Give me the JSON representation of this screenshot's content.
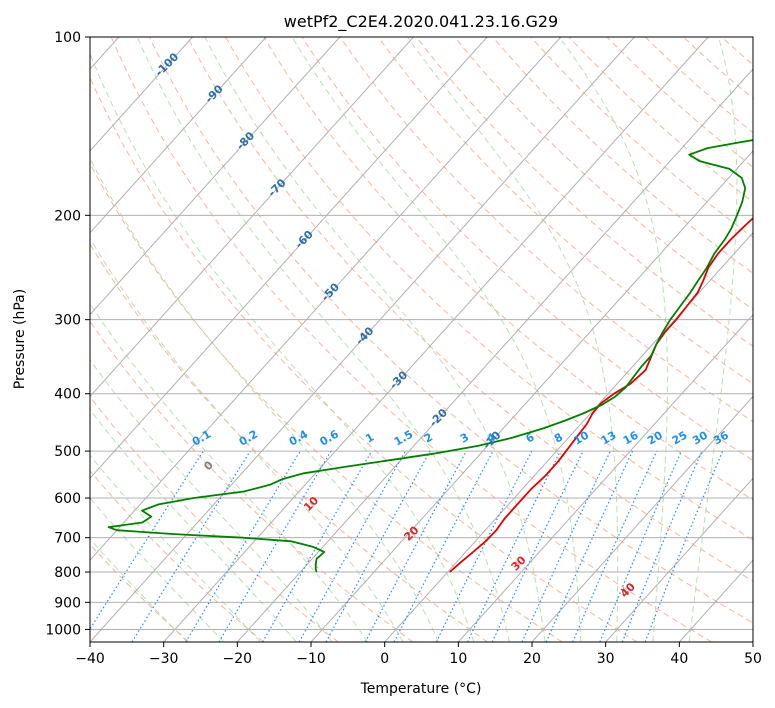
{
  "chart_data": {
    "type": "skew-t",
    "title": "wetPf2_C2E4.2020.041.23.16.G29",
    "xlabel": "Temperature (°C)",
    "ylabel": "Pressure (hPa)",
    "xlim": [
      -40,
      50
    ],
    "ylim": [
      1050,
      100
    ],
    "xticks": [
      -40,
      -30,
      -20,
      -10,
      0,
      10,
      20,
      30,
      40,
      50
    ],
    "yticks": [
      100,
      200,
      300,
      400,
      500,
      600,
      700,
      800,
      900,
      1000
    ],
    "colors": {
      "temperature": "#e00000",
      "dewpoint": "#008000",
      "isotherm": "#b0b0b0",
      "dry_adiabat": "#f4a582",
      "moist_adiabat": "#a6d8a0",
      "mixing_ratio": "#1f8fef",
      "isotherm_label": "#2a6fa8",
      "dry_label": "#d62728",
      "zero_label": "#808080"
    },
    "series": [
      {
        "name": "Temperature",
        "points": [
          [
            100,
            15.4
          ],
          [
            105,
            14.2
          ],
          [
            110,
            12.8
          ],
          [
            115,
            11.8
          ],
          [
            120,
            11.3
          ],
          [
            125,
            11.0
          ],
          [
            128,
            10.7
          ],
          [
            132,
            9.8
          ],
          [
            137,
            8.0
          ],
          [
            142,
            6.3
          ],
          [
            147,
            5.2
          ],
          [
            152,
            4.7
          ],
          [
            158,
            4.3
          ],
          [
            163,
            3.6
          ],
          [
            170,
            2.2
          ],
          [
            177,
            0.8
          ],
          [
            185,
            -0.4
          ],
          [
            192,
            -1.2
          ],
          [
            200,
            -1.7
          ],
          [
            210,
            -2.0
          ],
          [
            220,
            -2.2
          ],
          [
            232,
            -2.2
          ],
          [
            245,
            -1.8
          ],
          [
            258,
            -0.9
          ],
          [
            270,
            -0.2
          ],
          [
            285,
            0.0
          ],
          [
            300,
            0.2
          ],
          [
            315,
            0.2
          ],
          [
            330,
            0.5
          ],
          [
            350,
            1.5
          ],
          [
            365,
            2.2
          ],
          [
            385,
            1.8
          ],
          [
            400,
            0.8
          ],
          [
            415,
            0.2
          ],
          [
            432,
            0.3
          ],
          [
            450,
            0.8
          ],
          [
            470,
            1.0
          ],
          [
            490,
            1.2
          ],
          [
            520,
            1.5
          ],
          [
            550,
            1.5
          ],
          [
            580,
            1.2
          ],
          [
            620,
            1.2
          ],
          [
            650,
            1.2
          ],
          [
            680,
            1.5
          ],
          [
            710,
            1.4
          ],
          [
            740,
            1.0
          ],
          [
            770,
            0.6
          ],
          [
            800,
            0.3
          ]
        ]
      },
      {
        "name": "Dewpoint",
        "points": [
          [
            100,
            -3.5
          ],
          [
            108,
            -5.5
          ],
          [
            115,
            -8.3
          ],
          [
            121,
            -11.2
          ],
          [
            124,
            -13.0
          ],
          [
            127,
            -11.5
          ],
          [
            131,
            -8.0
          ],
          [
            137,
            -5.8
          ],
          [
            142,
            -6.2
          ],
          [
            147,
            -8.6
          ],
          [
            151,
            -13.3
          ],
          [
            154,
            -16.5
          ],
          [
            158,
            -18.2
          ],
          [
            162,
            -16.0
          ],
          [
            167,
            -11.0
          ],
          [
            173,
            -8.2
          ],
          [
            180,
            -6.5
          ],
          [
            190,
            -5.2
          ],
          [
            200,
            -4.3
          ],
          [
            210,
            -3.5
          ],
          [
            220,
            -3.0
          ],
          [
            232,
            -2.7
          ],
          [
            245,
            -2.0
          ],
          [
            258,
            -1.6
          ],
          [
            270,
            -1.2
          ],
          [
            285,
            -0.9
          ],
          [
            300,
            -0.6
          ],
          [
            315,
            -0.1
          ],
          [
            330,
            0.5
          ],
          [
            345,
            1.2
          ],
          [
            360,
            1.2
          ],
          [
            375,
            1.4
          ],
          [
            390,
            1.6
          ],
          [
            405,
            1.3
          ],
          [
            418,
            0.5
          ],
          [
            432,
            -1.0
          ],
          [
            445,
            -2.7
          ],
          [
            458,
            -4.6
          ],
          [
            475,
            -7.7
          ],
          [
            490,
            -11.3
          ],
          [
            505,
            -16.4
          ],
          [
            520,
            -22.3
          ],
          [
            532,
            -27.0
          ],
          [
            545,
            -31.6
          ],
          [
            558,
            -33.8
          ],
          [
            570,
            -34.8
          ],
          [
            585,
            -37.5
          ],
          [
            600,
            -43.5
          ],
          [
            615,
            -47.5
          ],
          [
            630,
            -49.0
          ],
          [
            645,
            -47.0
          ],
          [
            660,
            -47.5
          ],
          [
            672,
            -51.5
          ],
          [
            680,
            -50.0
          ],
          [
            690,
            -42.0
          ],
          [
            700,
            -32.0
          ],
          [
            710,
            -25.0
          ],
          [
            725,
            -21.4
          ],
          [
            740,
            -19.2
          ],
          [
            760,
            -19.4
          ],
          [
            775,
            -18.9
          ],
          [
            790,
            -18.3
          ],
          [
            800,
            -17.8
          ]
        ]
      }
    ],
    "isotherm_labels": [
      "-100",
      "-90",
      "-80",
      "-70",
      "-60",
      "-50",
      "-40",
      "-30",
      "-20",
      "-10"
    ],
    "mixing_ratio_labels": [
      "0.1",
      "0.2",
      "0.4",
      "0.6",
      "1",
      "1.5",
      "2",
      "3",
      "4",
      "6",
      "8",
      "10",
      "13",
      "16",
      "20",
      "25",
      "30",
      "36"
    ],
    "dry_adiabat_labels": [
      "0",
      "10",
      "20",
      "30",
      "40"
    ]
  }
}
